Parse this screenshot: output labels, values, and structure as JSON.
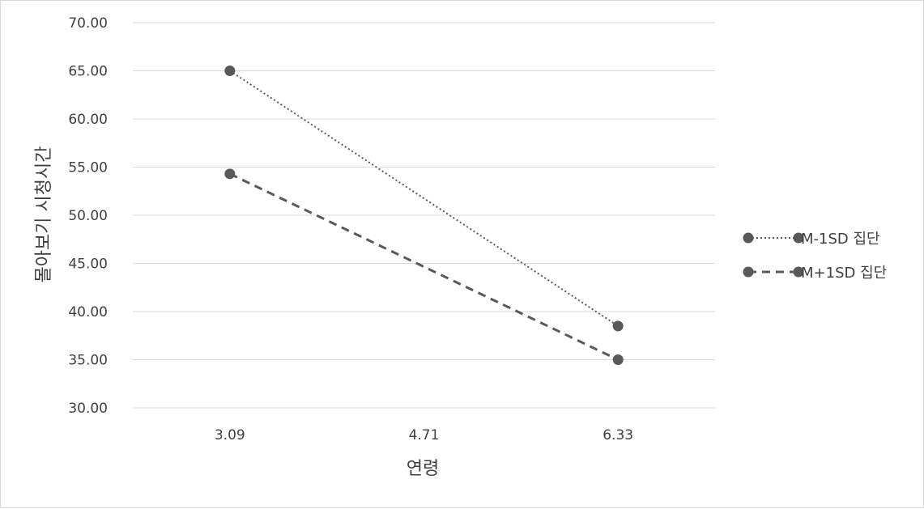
{
  "chart_data": {
    "type": "line",
    "title": "",
    "xlabel": "연령",
    "ylabel": "몰아보기 시청시간",
    "categories": [
      "3.09",
      "4.71",
      "6.33"
    ],
    "ylim": [
      30,
      70
    ],
    "yticks": [
      "30.00",
      "35.00",
      "40.00",
      "45.00",
      "50.00",
      "55.00",
      "60.00",
      "65.00",
      "70.00"
    ],
    "grid": true,
    "legend_position": "right",
    "series": [
      {
        "name": "M-1SD 집단",
        "x": [
          "3.09",
          "6.33"
        ],
        "values": [
          65.0,
          38.5
        ],
        "line_style": "dotted",
        "color": "#595959"
      },
      {
        "name": "M+1SD 집단",
        "x": [
          "3.09",
          "6.33"
        ],
        "values": [
          54.3,
          35.0
        ],
        "line_style": "dashed",
        "color": "#595959"
      }
    ]
  }
}
